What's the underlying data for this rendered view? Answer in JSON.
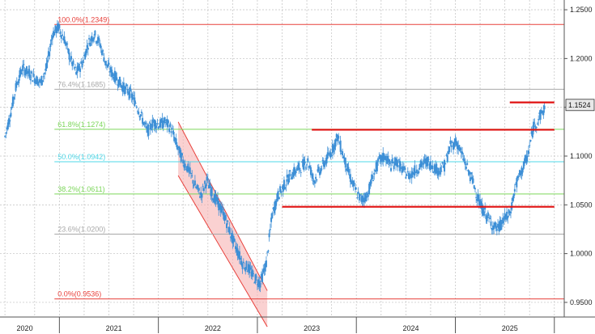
{
  "colors": {
    "candle": "#3d8fd6",
    "grid": "#c8c8c8",
    "fib_red": "#e8403b",
    "fib_gray": "#a8a8a8",
    "fib_green": "#7cd65a",
    "fib_cyan": "#4fd8e8",
    "level_red": "#e01010",
    "channel_fill": "#f7b3b3",
    "channel_line": "#e8403b",
    "price_tag_bg": "#e8e8e8"
  },
  "chart_data": {
    "type": "candlestick",
    "title": "",
    "xlabel": "",
    "ylabel": "",
    "ylim": [
      0.935,
      1.26
    ],
    "xlim": [
      2019.85,
      2025.55
    ],
    "grid": true,
    "y_ticks": [
      {
        "value": 1.25,
        "label": "1.2500"
      },
      {
        "value": 1.2,
        "label": "1.2000"
      },
      {
        "value": 1.15,
        "label": "1.1500"
      },
      {
        "value": 1.1,
        "label": "1.1000"
      },
      {
        "value": 1.05,
        "label": "1.0500"
      },
      {
        "value": 1.0,
        "label": "1.0000"
      },
      {
        "value": 0.95,
        "label": "0.9500"
      }
    ],
    "x_labels": [
      {
        "value": 2020.1,
        "label": "2020"
      },
      {
        "value": 2021.0,
        "label": "2021"
      },
      {
        "value": 2022.0,
        "label": "2022"
      },
      {
        "value": 2023.0,
        "label": "2023"
      },
      {
        "value": 2024.0,
        "label": "2024"
      },
      {
        "value": 2025.0,
        "label": "2025"
      }
    ],
    "x_grid": [
      2019.9,
      2020.2,
      2020.45,
      2020.7,
      2020.95,
      2021.2,
      2021.45,
      2021.7,
      2021.95,
      2022.2,
      2022.45,
      2022.7,
      2022.95,
      2023.2,
      2023.45,
      2023.7,
      2023.95,
      2024.2,
      2024.45,
      2024.7,
      2024.95,
      2025.2,
      2025.45
    ],
    "x_major_ticks": [
      2020.45,
      2021.45,
      2022.45,
      2023.45,
      2024.45,
      2025.45
    ],
    "fib_levels": [
      {
        "label": "100.0%(1.2349)",
        "value": 1.2349,
        "color": "#e8403b"
      },
      {
        "label": "76.4%(1.1685)",
        "value": 1.1685,
        "color": "#a8a8a8"
      },
      {
        "label": "61.8%(1.1274)",
        "value": 1.1274,
        "color": "#7cd65a"
      },
      {
        "label": "50.0%(1.0942)",
        "value": 1.0942,
        "color": "#4fd8e8"
      },
      {
        "label": "38.2%(1.0611)",
        "value": 1.0611,
        "color": "#7cd65a"
      },
      {
        "label": "23.6%(1.0200)",
        "value": 1.02,
        "color": "#a8a8a8"
      },
      {
        "label": "0.0%(0.9536)",
        "value": 0.9536,
        "color": "#e8403b"
      }
    ],
    "fib_x_start": 2020.4,
    "horizontal_levels": [
      {
        "x_start": 2023.0,
        "x_end": 2025.45,
        "value": 1.127
      },
      {
        "x_start": 2022.7,
        "x_end": 2025.45,
        "value": 1.048
      },
      {
        "x_start": 2025.0,
        "x_end": 2025.45,
        "value": 1.155
      }
    ],
    "channel": {
      "upper": [
        [
          2021.65,
          1.135
        ],
        [
          2022.55,
          0.962
        ]
      ],
      "lower": [
        [
          2021.65,
          1.08
        ],
        [
          2022.55,
          0.925
        ]
      ]
    },
    "current_price": {
      "value": 1.1524,
      "label": "1.1524"
    },
    "series": {
      "x": [
        2019.9,
        2019.96,
        2020.02,
        2020.08,
        2020.14,
        2020.2,
        2020.26,
        2020.32,
        2020.38,
        2020.44,
        2020.5,
        2020.56,
        2020.62,
        2020.68,
        2020.74,
        2020.8,
        2020.86,
        2020.92,
        2020.98,
        2021.04,
        2021.1,
        2021.16,
        2021.22,
        2021.28,
        2021.34,
        2021.4,
        2021.46,
        2021.52,
        2021.58,
        2021.64,
        2021.7,
        2021.76,
        2021.82,
        2021.88,
        2021.94,
        2022.0,
        2022.06,
        2022.12,
        2022.18,
        2022.24,
        2022.3,
        2022.36,
        2022.42,
        2022.48,
        2022.54,
        2022.6,
        2022.66,
        2022.72,
        2022.78,
        2022.84,
        2022.9,
        2022.96,
        2023.02,
        2023.08,
        2023.14,
        2023.2,
        2023.26,
        2023.32,
        2023.38,
        2023.44,
        2023.5,
        2023.56,
        2023.62,
        2023.68,
        2023.74,
        2023.8,
        2023.86,
        2023.92,
        2023.98,
        2024.04,
        2024.1,
        2024.16,
        2024.22,
        2024.28,
        2024.34,
        2024.4,
        2024.46,
        2024.52,
        2024.58,
        2024.64,
        2024.7,
        2024.76,
        2024.82,
        2024.88,
        2024.94,
        2025.0,
        2025.06,
        2025.12,
        2025.18,
        2025.24,
        2025.3,
        2025.36
      ],
      "y": [
        1.12,
        1.145,
        1.175,
        1.19,
        1.185,
        1.18,
        1.175,
        1.19,
        1.225,
        1.232,
        1.22,
        1.2,
        1.185,
        1.195,
        1.215,
        1.225,
        1.215,
        1.195,
        1.185,
        1.178,
        1.17,
        1.165,
        1.155,
        1.14,
        1.125,
        1.135,
        1.132,
        1.135,
        1.128,
        1.11,
        1.095,
        1.085,
        1.07,
        1.06,
        1.075,
        1.06,
        1.05,
        1.038,
        1.02,
        1.005,
        0.99,
        0.985,
        0.975,
        0.97,
        0.99,
        1.04,
        1.06,
        1.07,
        1.08,
        1.085,
        1.09,
        1.095,
        1.075,
        1.085,
        1.095,
        1.105,
        1.12,
        1.1,
        1.08,
        1.065,
        1.055,
        1.06,
        1.08,
        1.095,
        1.1,
        1.09,
        1.095,
        1.085,
        1.08,
        1.085,
        1.09,
        1.095,
        1.09,
        1.085,
        1.09,
        1.11,
        1.115,
        1.1,
        1.085,
        1.07,
        1.05,
        1.04,
        1.03,
        1.025,
        1.035,
        1.04,
        1.07,
        1.085,
        1.1,
        1.13,
        1.14,
        1.15
      ]
    }
  }
}
